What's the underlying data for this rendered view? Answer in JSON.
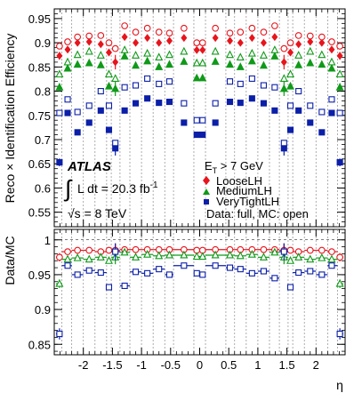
{
  "chart_data": {
    "type": "scatter",
    "title": "",
    "x": [
      -2.41,
      -2.27,
      -2.1,
      -1.9,
      -1.7,
      -1.56,
      -1.45,
      -1.29,
      -1.1,
      -0.9,
      -0.7,
      -0.52,
      -0.27,
      -0.05,
      0.05,
      0.27,
      0.52,
      0.7,
      0.9,
      1.1,
      1.29,
      1.45,
      1.56,
      1.7,
      1.9,
      2.1,
      2.27,
      2.41
    ],
    "xbins": [
      [
        -2.47,
        -2.37
      ],
      [
        -2.37,
        -2.2
      ],
      [
        -2.2,
        -2.0
      ],
      [
        -2.0,
        -1.8
      ],
      [
        -1.8,
        -1.6
      ],
      [
        -1.6,
        -1.52
      ],
      [
        -1.52,
        -1.37
      ],
      [
        -1.37,
        -1.2
      ],
      [
        -1.2,
        -1.0
      ],
      [
        -1.0,
        -0.8
      ],
      [
        -0.8,
        -0.6
      ],
      [
        -0.6,
        -0.45
      ],
      [
        -0.45,
        -0.1
      ],
      [
        -0.1,
        0.0
      ],
      [
        0.0,
        0.1
      ],
      [
        0.1,
        0.45
      ],
      [
        0.45,
        0.6
      ],
      [
        0.6,
        0.8
      ],
      [
        0.8,
        1.0
      ],
      [
        1.0,
        1.2
      ],
      [
        1.2,
        1.37
      ],
      [
        1.37,
        1.52
      ],
      [
        1.52,
        1.6
      ],
      [
        1.6,
        1.8
      ],
      [
        1.8,
        2.0
      ],
      [
        2.0,
        2.2
      ],
      [
        2.2,
        2.37
      ],
      [
        2.37,
        2.47
      ]
    ],
    "xlabel": "η",
    "xlim": [
      -2.5,
      2.5
    ],
    "xticks": [
      "-2",
      "-1.5",
      "-1",
      "-0.5",
      "0",
      "0.5",
      "1",
      "1.5",
      "2"
    ],
    "xtick_values": [
      -2,
      -1.5,
      -1,
      -0.5,
      0,
      0.5,
      1,
      1.5,
      2
    ],
    "vlines": [
      -2.37,
      -2.2,
      -2.0,
      -1.8,
      -1.6,
      -1.52,
      -1.37,
      -1.2,
      -1.0,
      -0.8,
      -0.6,
      -0.45,
      -0.1,
      0.1,
      0.45,
      0.6,
      0.8,
      1.0,
      1.2,
      1.37,
      1.52,
      1.6,
      1.8,
      2.0,
      2.2,
      2.37
    ],
    "top": {
      "ylabel": "Reco × Identification Efficiency",
      "ylim": [
        0.52,
        0.97
      ],
      "yticks": [
        "0.55",
        "0.6",
        "0.65",
        "0.7",
        "0.75",
        "0.8",
        "0.85",
        "0.9",
        "0.95"
      ],
      "ytick_values": [
        0.55,
        0.6,
        0.65,
        0.7,
        0.75,
        0.8,
        0.85,
        0.9,
        0.95
      ],
      "series": [
        {
          "name": "LooseLH",
          "kind": "data",
          "color": "#e8141c",
          "marker": "diamond",
          "filled": true,
          "values": [
            0.873,
            0.886,
            0.9,
            0.902,
            0.897,
            0.88,
            0.86,
            0.912,
            0.9,
            0.91,
            0.9,
            0.904,
            0.91,
            0.885,
            0.885,
            0.91,
            0.904,
            0.9,
            0.91,
            0.9,
            0.912,
            0.86,
            0.88,
            0.897,
            0.902,
            0.9,
            0.886,
            0.873
          ],
          "errors": [
            0.008,
            0.003,
            0.003,
            0.003,
            0.003,
            0.005,
            0.015,
            0.003,
            0.003,
            0.003,
            0.003,
            0.003,
            0.003,
            0.003,
            0.003,
            0.003,
            0.003,
            0.003,
            0.003,
            0.003,
            0.003,
            0.015,
            0.005,
            0.003,
            0.003,
            0.003,
            0.003,
            0.008
          ]
        },
        {
          "name": "",
          "kind": "mc",
          "color": "#e8141c",
          "marker": "circle",
          "filled": false,
          "values": [
            0.893,
            0.902,
            0.912,
            0.914,
            0.915,
            0.9,
            0.888,
            0.935,
            0.922,
            0.93,
            0.922,
            0.92,
            0.93,
            0.9,
            0.9,
            0.93,
            0.92,
            0.922,
            0.93,
            0.922,
            0.935,
            0.888,
            0.9,
            0.915,
            0.914,
            0.912,
            0.902,
            0.893
          ]
        },
        {
          "name": "MediumLH",
          "kind": "data",
          "color": "#0f9a18",
          "marker": "triangle",
          "filled": true,
          "values": [
            0.808,
            0.847,
            0.855,
            0.858,
            0.854,
            0.81,
            0.805,
            0.872,
            0.853,
            0.862,
            0.85,
            0.855,
            0.861,
            0.827,
            0.827,
            0.861,
            0.855,
            0.85,
            0.862,
            0.853,
            0.872,
            0.805,
            0.81,
            0.854,
            0.858,
            0.855,
            0.847,
            0.808
          ],
          "errors": [
            0.008,
            0.003,
            0.003,
            0.003,
            0.003,
            0.005,
            0.015,
            0.003,
            0.003,
            0.003,
            0.003,
            0.003,
            0.003,
            0.003,
            0.003,
            0.003,
            0.003,
            0.003,
            0.003,
            0.003,
            0.003,
            0.015,
            0.005,
            0.003,
            0.003,
            0.003,
            0.003,
            0.008
          ]
        },
        {
          "name": "",
          "kind": "mc",
          "color": "#0f9a18",
          "marker": "triangle",
          "filled": false,
          "values": [
            0.835,
            0.86,
            0.875,
            0.882,
            0.874,
            0.835,
            0.826,
            0.885,
            0.874,
            0.878,
            0.87,
            0.875,
            0.882,
            0.858,
            0.858,
            0.882,
            0.875,
            0.87,
            0.878,
            0.874,
            0.885,
            0.826,
            0.835,
            0.874,
            0.882,
            0.875,
            0.86,
            0.835
          ]
        },
        {
          "name": "VeryTightLH",
          "kind": "data",
          "color": "#0b1fa8",
          "marker": "square",
          "filled": true,
          "values": [
            0.653,
            0.755,
            0.715,
            0.735,
            0.76,
            0.72,
            0.682,
            0.76,
            0.775,
            0.785,
            0.776,
            0.778,
            0.735,
            0.71,
            0.71,
            0.735,
            0.778,
            0.776,
            0.785,
            0.775,
            0.76,
            0.682,
            0.72,
            0.76,
            0.735,
            0.715,
            0.755,
            0.653
          ],
          "errors": [
            0.008,
            0.003,
            0.003,
            0.003,
            0.003,
            0.005,
            0.015,
            0.003,
            0.003,
            0.003,
            0.003,
            0.003,
            0.003,
            0.003,
            0.003,
            0.003,
            0.003,
            0.003,
            0.003,
            0.003,
            0.003,
            0.015,
            0.005,
            0.003,
            0.003,
            0.003,
            0.003,
            0.008
          ]
        },
        {
          "name": "",
          "kind": "mc",
          "color": "#0b1fa8",
          "marker": "square",
          "filled": false,
          "values": [
            0.755,
            0.783,
            0.757,
            0.77,
            0.8,
            0.77,
            0.693,
            0.808,
            0.812,
            0.826,
            0.815,
            0.82,
            0.775,
            0.74,
            0.74,
            0.775,
            0.82,
            0.815,
            0.826,
            0.812,
            0.808,
            0.693,
            0.77,
            0.8,
            0.77,
            0.757,
            0.783,
            0.755
          ]
        }
      ]
    },
    "bottom": {
      "ylabel": "Data/MC",
      "ylim": [
        0.835,
        1.015
      ],
      "yticks": [
        "0.85",
        "0.9",
        "0.95",
        "1"
      ],
      "ytick_values": [
        0.85,
        0.9,
        0.95,
        1.0
      ],
      "series": [
        {
          "name": "LooseLH",
          "color": "#e8141c",
          "marker": "circle",
          "values": [
            0.975,
            0.983,
            0.985,
            0.985,
            0.983,
            0.985,
            0.985,
            0.986,
            0.986,
            0.986,
            0.986,
            0.986,
            0.986,
            0.985,
            0.985,
            0.986,
            0.986,
            0.986,
            0.986,
            0.986,
            0.986,
            0.985,
            0.985,
            0.983,
            0.985,
            0.985,
            0.983,
            0.975
          ],
          "errors": [
            0.006,
            0.002,
            0.002,
            0.002,
            0.002,
            0.003,
            0.01,
            0.002,
            0.002,
            0.002,
            0.002,
            0.002,
            0.002,
            0.002,
            0.002,
            0.002,
            0.002,
            0.002,
            0.002,
            0.002,
            0.002,
            0.01,
            0.003,
            0.002,
            0.002,
            0.002,
            0.002,
            0.006
          ]
        },
        {
          "name": "MediumLH",
          "color": "#0f9a18",
          "marker": "triangle",
          "values": [
            0.937,
            0.972,
            0.974,
            0.972,
            0.975,
            0.97,
            0.975,
            0.982,
            0.975,
            0.979,
            0.977,
            0.978,
            0.978,
            0.976,
            0.976,
            0.978,
            0.978,
            0.977,
            0.979,
            0.975,
            0.982,
            0.975,
            0.97,
            0.975,
            0.972,
            0.974,
            0.972,
            0.937
          ],
          "errors": [
            0.006,
            0.002,
            0.002,
            0.002,
            0.002,
            0.003,
            0.01,
            0.002,
            0.002,
            0.002,
            0.002,
            0.002,
            0.002,
            0.002,
            0.002,
            0.002,
            0.002,
            0.002,
            0.002,
            0.002,
            0.002,
            0.01,
            0.003,
            0.002,
            0.002,
            0.002,
            0.002,
            0.006
          ]
        },
        {
          "name": "VeryTightLH",
          "color": "#0b1fa8",
          "marker": "square",
          "values": [
            0.865,
            0.963,
            0.95,
            0.956,
            0.953,
            0.932,
            0.983,
            0.934,
            0.954,
            0.952,
            0.958,
            0.95,
            0.963,
            0.952,
            0.95,
            0.963,
            0.96,
            0.958,
            0.952,
            0.955,
            0.945,
            0.983,
            0.932,
            0.953,
            0.955,
            0.95,
            0.963,
            0.865
          ],
          "errors": [
            0.008,
            0.003,
            0.003,
            0.003,
            0.003,
            0.004,
            0.012,
            0.003,
            0.003,
            0.003,
            0.003,
            0.003,
            0.003,
            0.003,
            0.003,
            0.003,
            0.003,
            0.003,
            0.003,
            0.003,
            0.003,
            0.012,
            0.004,
            0.003,
            0.003,
            0.003,
            0.003,
            0.008
          ]
        }
      ]
    },
    "legend_placement": "bottom-right of top panel"
  },
  "labels": {
    "experiment": "ATLAS",
    "lumi_integral": "∫",
    "lumi_text": "L dt = 20.3 fb",
    "lumi_exp": "-1",
    "sqrt_s": "√s = 8 TeV",
    "et_cut_main": "E",
    "et_cut_sub": "T",
    "et_cut_rest": " > 7 GeV",
    "legend_loose": "LooseLH",
    "legend_medium": "MediumLH",
    "legend_verytight": "VeryTightLH",
    "data_mc_note": "Data: full, MC: open"
  },
  "colors": {
    "loose": "#e8141c",
    "medium": "#0f9a18",
    "verytight": "#0b1fa8",
    "vline": "#9a9a9a"
  }
}
